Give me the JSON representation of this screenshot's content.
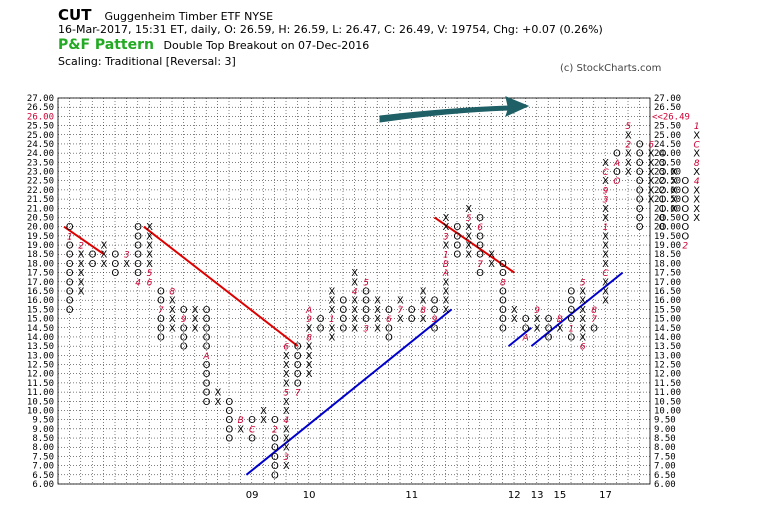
{
  "header": {
    "symbol": "CUT",
    "name": "Guggenheim Timber ETF  NYSE",
    "stats": "16-Mar-2017, 15:31 ET, daily, O: 26.59, H: 26.59, L: 26.47, C: 26.49, V: 19754, Chg: +0.07 (0.26%)",
    "pattern_label": "P&F Pattern",
    "pattern_text": "Double Top Breakout on 07-Dec-2016",
    "scaling": "Scaling: Traditional [Reversal: 3]",
    "credit": "(c) StockCharts.com"
  },
  "colors": {
    "x_mark": "#000000",
    "o_mark": "#000000",
    "month_marker": "#cc0033",
    "resistance": "#dd0000",
    "support": "#0000cc",
    "arrow": "#1f6066",
    "last_price": "#cc0033",
    "grid": "#000000"
  },
  "chart_data": {
    "type": "point-and-figure",
    "box_size": 0.5,
    "reversal": 3,
    "y_range": [
      6.0,
      27.0
    ],
    "last_price_label": "<<26.49",
    "x_tick_labels": [
      {
        "label": "09",
        "col": 16
      },
      {
        "label": "10",
        "col": 21
      },
      {
        "label": "11",
        "col": 30
      },
      {
        "label": "12",
        "col": 39
      },
      {
        "label": "13",
        "col": 41
      },
      {
        "label": "15",
        "col": 43
      },
      {
        "label": "17",
        "col": 47
      }
    ],
    "columns": [
      {
        "t": "O",
        "hi": 20,
        "lo": 15.5,
        "m": {
          "19.5": "1"
        }
      },
      {
        "t": "X",
        "hi": 19,
        "lo": 16.5,
        "m": {
          "19": "2"
        }
      },
      {
        "t": "O",
        "hi": 18.5,
        "lo": 18
      },
      {
        "t": "X",
        "hi": 19,
        "lo": 18
      },
      {
        "t": "O",
        "hi": 18.5,
        "lo": 17.5
      },
      {
        "t": "X",
        "hi": 18.5,
        "lo": 18,
        "m": {
          "18.5": "3"
        }
      },
      {
        "t": "O",
        "hi": 20,
        "lo": 17,
        "m": {
          "17": "4"
        }
      },
      {
        "t": "X",
        "hi": 20,
        "lo": 17,
        "m": {
          "17.5": "5",
          "17": "6"
        }
      },
      {
        "t": "O",
        "hi": 16.5,
        "lo": 14,
        "m": {
          "15.5": "7"
        }
      },
      {
        "t": "X",
        "hi": 16.5,
        "lo": 14.5,
        "m": {
          "16.5": "8"
        }
      },
      {
        "t": "O",
        "hi": 15.5,
        "lo": 13.5,
        "m": {
          "15": "9"
        }
      },
      {
        "t": "X",
        "hi": 15.5,
        "lo": 14.5
      },
      {
        "t": "O",
        "hi": 15.5,
        "lo": 10.5,
        "m": {
          "13": "A"
        }
      },
      {
        "t": "X",
        "hi": 11,
        "lo": 10.5
      },
      {
        "t": "O",
        "hi": 10.5,
        "lo": 8.5
      },
      {
        "t": "X",
        "hi": 9.5,
        "lo": 9,
        "m": {
          "9.5": "B"
        }
      },
      {
        "t": "O",
        "hi": 9.5,
        "lo": 8.5,
        "m": {
          "9": "C"
        }
      },
      {
        "t": "X",
        "hi": 10,
        "lo": 9.5,
        "m": {
          "10.5": "1"
        }
      },
      {
        "t": "O",
        "hi": 9.5,
        "lo": 6.5,
        "m": {
          "9": "2"
        }
      },
      {
        "t": "X",
        "hi": 13.5,
        "lo": 7,
        "m": {
          "7.5": "3",
          "9.5": "4",
          "11": "5",
          "13.5": "6"
        }
      },
      {
        "t": "O",
        "hi": 13.5,
        "lo": 11,
        "m": {
          "11": "7"
        }
      },
      {
        "t": "X",
        "hi": 15.5,
        "lo": 12,
        "m": {
          "14": "8",
          "15": "9",
          "15.5": "A"
        }
      },
      {
        "t": "O",
        "hi": 15,
        "lo": 14.5
      },
      {
        "t": "X",
        "hi": 16.5,
        "lo": 14,
        "m": {
          "15": "1"
        }
      },
      {
        "t": "O",
        "hi": 16,
        "lo": 14.5,
        "m": {
          "14": "2"
        }
      },
      {
        "t": "X",
        "hi": 17.5,
        "lo": 14.5,
        "m": {
          "16.5": "4"
        }
      },
      {
        "t": "O",
        "hi": 17,
        "lo": 14.5,
        "m": {
          "14.5": "3",
          "17": "5"
        }
      },
      {
        "t": "X",
        "hi": 16,
        "lo": 14.5
      },
      {
        "t": "O",
        "hi": 15.5,
        "lo": 14,
        "m": {
          "15": "6"
        }
      },
      {
        "t": "X",
        "hi": 16,
        "lo": 15,
        "m": {
          "15.5": "7"
        }
      },
      {
        "t": "O",
        "hi": 15.5,
        "lo": 15
      },
      {
        "t": "X",
        "hi": 16.5,
        "lo": 15,
        "m": {
          "15.5": "8"
        }
      },
      {
        "t": "O",
        "hi": 16,
        "lo": 14.5,
        "m": {
          "15": "9"
        }
      },
      {
        "t": "X",
        "hi": 20.5,
        "lo": 15.5,
        "m": {
          "17.5": "A",
          "18": "B",
          "18.5": "1",
          "19.5": "3"
        }
      },
      {
        "t": "O",
        "hi": 20,
        "lo": 18.5
      },
      {
        "t": "X",
        "hi": 21,
        "lo": 18.5,
        "m": {
          "20.5": "5"
        }
      },
      {
        "t": "O",
        "hi": 20.5,
        "lo": 17.5,
        "m": {
          "20": "6",
          "18": "7"
        }
      },
      {
        "t": "X",
        "hi": 18.5,
        "lo": 18
      },
      {
        "t": "O",
        "hi": 18,
        "lo": 14.5,
        "m": {
          "17": "8"
        }
      },
      {
        "t": "X",
        "hi": 15.5,
        "lo": 15
      },
      {
        "t": "O",
        "hi": 15,
        "lo": 14,
        "m": {
          "14": "A"
        }
      },
      {
        "t": "X",
        "hi": 15.5,
        "lo": 14.5,
        "m": {
          "15.5": "9"
        }
      },
      {
        "t": "O",
        "hi": 15,
        "lo": 14
      },
      {
        "t": "X",
        "hi": 15,
        "lo": 14.5,
        "m": {
          "15": "B"
        }
      },
      {
        "t": "O",
        "hi": 16.5,
        "lo": 14,
        "m": {
          "14.5": "1",
          "17": "2"
        }
      },
      {
        "t": "X",
        "hi": 17,
        "lo": 13.5,
        "m": {
          "13.5": "6",
          "17": "5"
        }
      },
      {
        "t": "O",
        "hi": 15.5,
        "lo": 14.5,
        "m": {
          "15": "7",
          "15.5": "8",
          "16": "9"
        }
      },
      {
        "t": "X",
        "hi": 23.5,
        "lo": 16,
        "m": {
          "17.5": "C",
          "20": "1",
          "21.5": "3",
          "22": "9",
          "23": "C"
        }
      },
      {
        "t": "O",
        "hi": 24,
        "lo": 22.5,
        "m": {
          "23.5": "A",
          "22.5": "O"
        }
      },
      {
        "t": "X",
        "hi": 25.5,
        "lo": 23,
        "m": {
          "25.5": "5",
          "24.5": "2"
        }
      },
      {
        "t": "O",
        "hi": 24.5,
        "lo": 20
      },
      {
        "t": "X",
        "hi": 24.5,
        "lo": 21.5,
        "m": {
          "24.5": "6"
        }
      },
      {
        "t": "O",
        "hi": 24,
        "lo": 20,
        "m": {
          "24.5": "B"
        }
      },
      {
        "t": "X",
        "hi": 23,
        "lo": 21
      },
      {
        "t": "O",
        "hi": 22.5,
        "lo": 19,
        "m": {
          "19": "2"
        }
      },
      {
        "t": "X",
        "hi": 25.5,
        "lo": 20.5,
        "m": {
          "22.5": "4",
          "23.5": "8",
          "24.5": "C",
          "25.5": "1",
          "20": "3"
        }
      }
    ]
  }
}
